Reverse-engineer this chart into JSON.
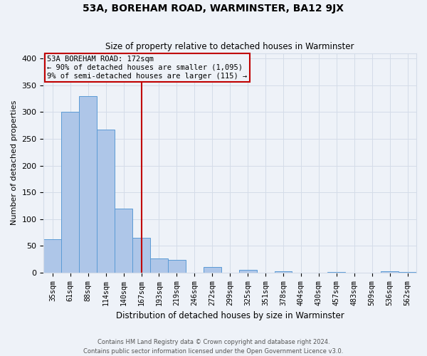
{
  "title": "53A, BOREHAM ROAD, WARMINSTER, BA12 9JX",
  "subtitle": "Size of property relative to detached houses in Warminster",
  "xlabel": "Distribution of detached houses by size in Warminster",
  "ylabel": "Number of detached properties",
  "bar_labels": [
    "35sqm",
    "61sqm",
    "88sqm",
    "114sqm",
    "140sqm",
    "167sqm",
    "193sqm",
    "219sqm",
    "246sqm",
    "272sqm",
    "299sqm",
    "325sqm",
    "351sqm",
    "378sqm",
    "404sqm",
    "430sqm",
    "457sqm",
    "483sqm",
    "509sqm",
    "536sqm",
    "562sqm"
  ],
  "bar_values": [
    62,
    300,
    330,
    267,
    120,
    65,
    27,
    24,
    0,
    10,
    0,
    5,
    0,
    2,
    0,
    0,
    1,
    0,
    0,
    2,
    1
  ],
  "bar_color": "#aec6e8",
  "bar_edge_color": "#5b9bd5",
  "property_label": "53A BOREHAM ROAD: 172sqm",
  "annotation_line1": "← 90% of detached houses are smaller (1,095)",
  "annotation_line2": "9% of semi-detached houses are larger (115) →",
  "vline_color": "#c00000",
  "vline_bin_index": 5,
  "annotation_box_color": "#c00000",
  "grid_color": "#d4dce8",
  "background_color": "#eef2f8",
  "ylim": [
    0,
    410
  ],
  "yticks": [
    0,
    50,
    100,
    150,
    200,
    250,
    300,
    350,
    400
  ],
  "footer_line1": "Contains HM Land Registry data © Crown copyright and database right 2024.",
  "footer_line2": "Contains public sector information licensed under the Open Government Licence v3.0."
}
